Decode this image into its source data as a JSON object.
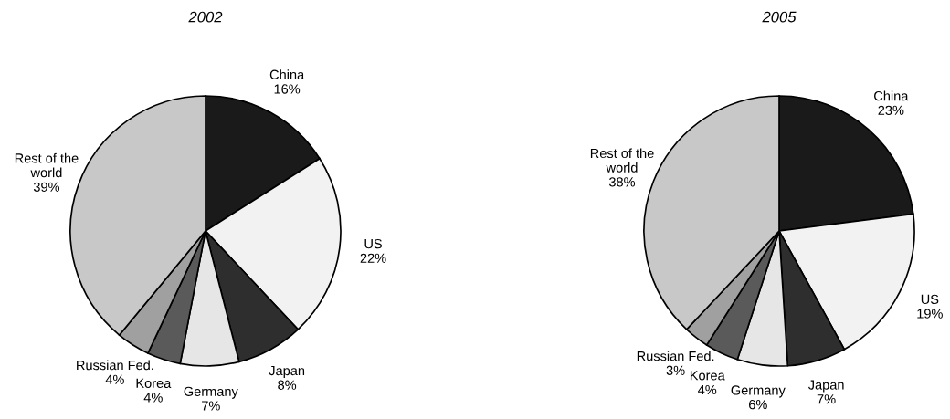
{
  "chart_data": [
    {
      "type": "pie",
      "title": "2002",
      "categories": [
        "China",
        "US",
        "Japan",
        "Germany",
        "Korea",
        "Russian Fed.",
        "Rest of the\nworld"
      ],
      "values": [
        16,
        22,
        8,
        7,
        4,
        4,
        39
      ],
      "value_labels": [
        "16%",
        "22%",
        "8%",
        "7%",
        "4%",
        "4%",
        "39%"
      ],
      "colors": [
        "#1a1a1a",
        "#f2f2f2",
        "#2e2e2e",
        "#e6e6e6",
        "#5a5a5a",
        "#a0a0a0",
        "#c8c8c8"
      ]
    },
    {
      "type": "pie",
      "title": "2005",
      "categories": [
        "China",
        "US",
        "Japan",
        "Germany",
        "Korea",
        "Russian Fed.",
        "Rest of the\nworld"
      ],
      "values": [
        23,
        19,
        7,
        6,
        4,
        3,
        38
      ],
      "value_labels": [
        "23%",
        "19%",
        "7%",
        "6%",
        "4%",
        "3%",
        "38%"
      ],
      "colors": [
        "#1a1a1a",
        "#f2f2f2",
        "#2e2e2e",
        "#e6e6e6",
        "#5a5a5a",
        "#a0a0a0",
        "#c8c8c8"
      ]
    }
  ]
}
